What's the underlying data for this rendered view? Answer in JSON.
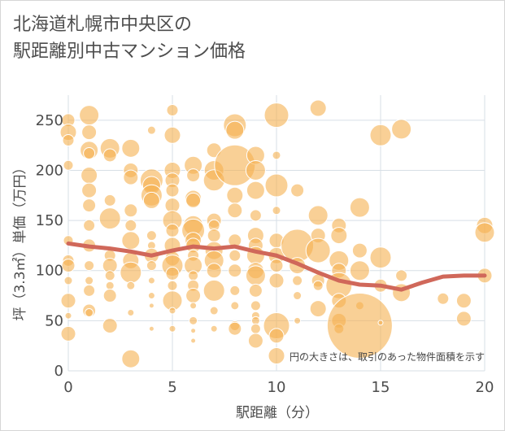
{
  "chart_data": {
    "type": "scatter",
    "title_lines": [
      "北海道札幌市中央区の",
      "駅距離別中古マンション価格"
    ],
    "xlabel": "駅距離（分）",
    "ylabel": "坪（3.3㎡）単価（万円）",
    "xlim": [
      0,
      20
    ],
    "ylim": [
      0,
      275
    ],
    "x_ticks": [
      0,
      5,
      10,
      15,
      20
    ],
    "y_ticks": [
      0,
      50,
      100,
      150,
      200,
      250
    ],
    "grid": true,
    "annotation": "円の大きさは、取引のあった物件面積を示す",
    "colors": {
      "bubble": "#f5b050",
      "trend": "#d0685a"
    },
    "series": [
      {
        "type": "bubble",
        "points": [
          [
            0,
            250,
            8
          ],
          [
            0,
            238,
            10
          ],
          [
            0,
            230,
            7
          ],
          [
            0,
            205,
            6
          ],
          [
            0,
            130,
            6
          ],
          [
            0,
            110,
            7
          ],
          [
            0,
            105,
            8
          ],
          [
            0,
            90,
            5
          ],
          [
            0,
            70,
            9
          ],
          [
            0,
            55,
            4
          ],
          [
            0,
            37,
            9
          ],
          [
            1,
            255,
            12
          ],
          [
            1,
            238,
            9
          ],
          [
            1,
            220,
            11
          ],
          [
            1,
            217,
            7
          ],
          [
            1,
            195,
            10
          ],
          [
            1,
            180,
            9
          ],
          [
            1,
            165,
            8
          ],
          [
            1,
            145,
            7
          ],
          [
            1,
            125,
            8
          ],
          [
            1,
            105,
            6
          ],
          [
            1,
            90,
            5
          ],
          [
            1,
            80,
            7
          ],
          [
            1,
            60,
            8
          ],
          [
            1,
            58,
            5
          ],
          [
            2,
            222,
            12
          ],
          [
            2,
            215,
            8
          ],
          [
            2,
            170,
            7
          ],
          [
            2,
            152,
            13
          ],
          [
            2,
            115,
            7
          ],
          [
            2,
            105,
            9
          ],
          [
            2,
            95,
            6
          ],
          [
            2,
            85,
            5
          ],
          [
            2,
            75,
            8
          ],
          [
            2,
            45,
            9
          ],
          [
            3,
            222,
            11
          ],
          [
            3,
            200,
            9
          ],
          [
            3,
            193,
            9
          ],
          [
            3,
            160,
            8
          ],
          [
            3,
            145,
            7
          ],
          [
            3,
            130,
            11
          ],
          [
            3,
            110,
            10
          ],
          [
            3,
            98,
            13
          ],
          [
            3,
            85,
            5
          ],
          [
            3,
            58,
            4
          ],
          [
            3,
            12,
            11
          ],
          [
            4,
            240,
            5
          ],
          [
            4,
            190,
            14
          ],
          [
            4,
            185,
            11
          ],
          [
            4,
            175,
            13
          ],
          [
            4,
            170,
            10
          ],
          [
            4,
            135,
            6
          ],
          [
            4,
            125,
            5
          ],
          [
            4,
            115,
            9
          ],
          [
            4,
            105,
            6
          ],
          [
            4,
            90,
            4
          ],
          [
            4,
            75,
            4
          ],
          [
            4,
            65,
            3
          ],
          [
            4,
            42,
            3
          ],
          [
            5,
            260,
            7
          ],
          [
            5,
            235,
            10
          ],
          [
            5,
            200,
            10
          ],
          [
            5,
            190,
            9
          ],
          [
            5,
            180,
            8
          ],
          [
            5,
            165,
            9
          ],
          [
            5,
            150,
            12
          ],
          [
            5,
            140,
            8
          ],
          [
            5,
            125,
            10
          ],
          [
            5,
            112,
            9
          ],
          [
            5,
            105,
            13
          ],
          [
            5,
            97,
            8
          ],
          [
            5,
            85,
            6
          ],
          [
            5,
            70,
            12
          ],
          [
            5,
            60,
            4
          ],
          [
            5,
            42,
            4
          ],
          [
            6,
            205,
            11
          ],
          [
            6,
            195,
            8
          ],
          [
            6,
            172,
            10
          ],
          [
            6,
            170,
            9
          ],
          [
            6,
            145,
            12
          ],
          [
            6,
            140,
            14
          ],
          [
            6,
            130,
            10
          ],
          [
            6,
            125,
            9
          ],
          [
            6,
            115,
            7
          ],
          [
            6,
            105,
            11
          ],
          [
            6,
            95,
            6
          ],
          [
            6,
            85,
            7
          ],
          [
            6,
            75,
            9
          ],
          [
            6,
            65,
            4
          ],
          [
            6,
            50,
            5
          ],
          [
            6,
            40,
            3
          ],
          [
            6,
            30,
            3
          ],
          [
            7,
            220,
            9
          ],
          [
            7,
            200,
            12
          ],
          [
            7,
            190,
            13
          ],
          [
            7,
            150,
            9
          ],
          [
            7,
            145,
            7
          ],
          [
            7,
            135,
            8
          ],
          [
            7,
            120,
            11
          ],
          [
            7,
            110,
            12
          ],
          [
            7,
            100,
            9
          ],
          [
            7,
            80,
            13
          ],
          [
            7,
            60,
            5
          ],
          [
            7,
            42,
            4
          ],
          [
            8,
            245,
            14
          ],
          [
            8,
            240,
            11
          ],
          [
            8,
            205,
            25
          ],
          [
            8,
            175,
            10
          ],
          [
            8,
            160,
            9
          ],
          [
            8,
            130,
            8
          ],
          [
            8,
            115,
            7
          ],
          [
            8,
            100,
            8
          ],
          [
            8,
            80,
            6
          ],
          [
            8,
            65,
            5
          ],
          [
            8,
            45,
            6
          ],
          [
            8,
            42,
            8
          ],
          [
            9,
            215,
            11
          ],
          [
            9,
            200,
            12
          ],
          [
            9,
            180,
            11
          ],
          [
            9,
            155,
            7
          ],
          [
            9,
            135,
            10
          ],
          [
            9,
            125,
            9
          ],
          [
            9,
            115,
            11
          ],
          [
            9,
            100,
            10
          ],
          [
            9,
            95,
            12
          ],
          [
            9,
            80,
            8
          ],
          [
            9,
            65,
            6
          ],
          [
            9,
            55,
            5
          ],
          [
            9,
            50,
            5
          ],
          [
            9,
            42,
            6
          ],
          [
            9,
            30,
            9
          ],
          [
            10,
            255,
            15
          ],
          [
            10,
            215,
            5
          ],
          [
            10,
            185,
            14
          ],
          [
            10,
            160,
            5
          ],
          [
            10,
            130,
            9
          ],
          [
            10,
            115,
            10
          ],
          [
            10,
            105,
            8
          ],
          [
            10,
            90,
            9
          ],
          [
            10,
            45,
            16
          ],
          [
            10,
            35,
            9
          ],
          [
            10,
            15,
            10
          ],
          [
            11,
            180,
            8
          ],
          [
            11,
            125,
            20
          ],
          [
            11,
            105,
            10
          ],
          [
            11,
            90,
            6
          ],
          [
            11,
            75,
            5
          ],
          [
            11,
            50,
            4
          ],
          [
            12,
            262,
            10
          ],
          [
            12,
            155,
            12
          ],
          [
            12,
            135,
            9
          ],
          [
            12,
            120,
            15
          ],
          [
            12,
            90,
            8
          ],
          [
            12,
            85,
            6
          ],
          [
            12,
            62,
            10
          ],
          [
            13,
            145,
            9
          ],
          [
            13,
            135,
            10
          ],
          [
            13,
            110,
            12
          ],
          [
            13,
            100,
            9
          ],
          [
            13,
            85,
            16
          ],
          [
            13,
            70,
            9
          ],
          [
            13,
            50,
            9
          ],
          [
            13,
            42,
            6
          ],
          [
            14,
            163,
            12
          ],
          [
            14,
            120,
            9
          ],
          [
            14,
            100,
            12
          ],
          [
            14,
            65,
            5
          ],
          [
            14,
            45,
            40
          ],
          [
            15,
            235,
            13
          ],
          [
            15,
            113,
            13
          ],
          [
            15,
            85,
            8
          ],
          [
            15,
            48,
            3
          ],
          [
            16,
            241,
            12
          ],
          [
            16,
            95,
            7
          ],
          [
            16,
            78,
            11
          ],
          [
            18,
            72,
            7
          ],
          [
            19,
            70,
            9
          ],
          [
            19,
            52,
            9
          ],
          [
            20,
            145,
            10
          ],
          [
            20,
            138,
            12
          ],
          [
            20,
            95,
            9
          ]
        ]
      },
      {
        "type": "line",
        "x": [
          0,
          1,
          2,
          3,
          4,
          5,
          6,
          7,
          8,
          9,
          10,
          11,
          12,
          13,
          14,
          15,
          16,
          17,
          18,
          19,
          20
        ],
        "y": [
          127,
          124,
          122,
          119,
          115,
          120,
          124,
          122,
          124,
          119,
          115,
          107,
          98,
          90,
          86,
          85,
          81,
          88,
          94,
          95,
          95
        ]
      }
    ]
  }
}
